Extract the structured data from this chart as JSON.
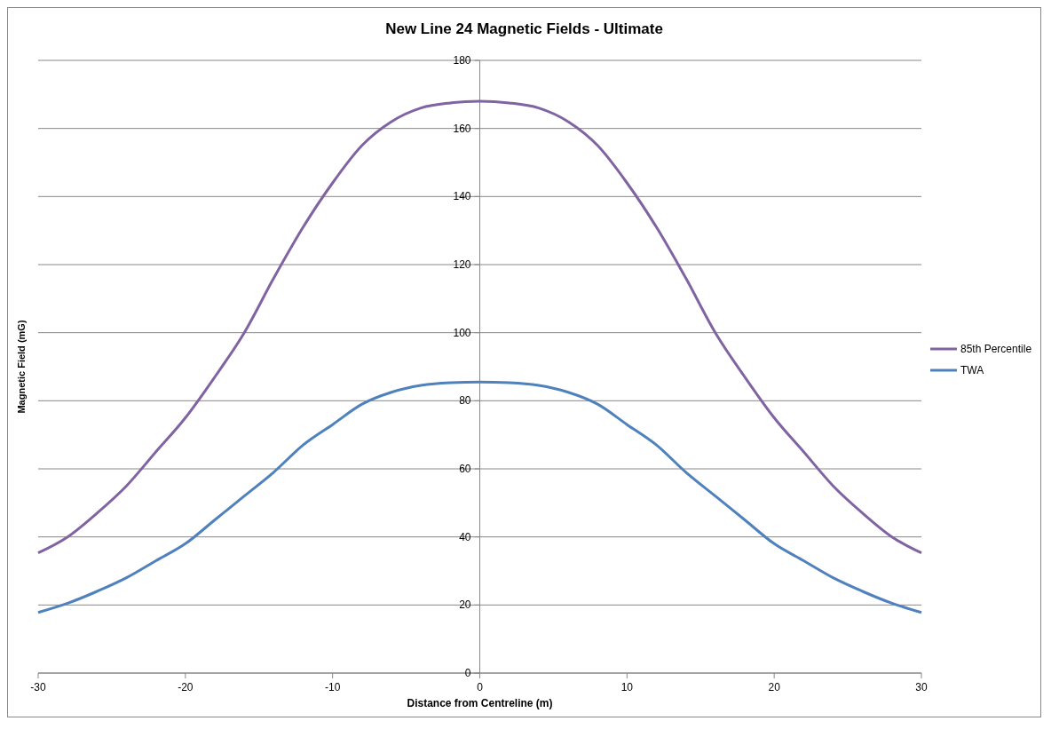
{
  "chart_data": {
    "type": "line",
    "title": "New Line 24 Magnetic Fields - Ultimate",
    "xlabel": "Distance from Centreline (m)",
    "ylabel": "Magnetic Field (mG)",
    "x": [
      -30,
      -28,
      -26,
      -24,
      -22,
      -20,
      -18,
      -16,
      -14,
      -12,
      -10,
      -8,
      -6,
      -4,
      -2,
      0,
      2,
      4,
      6,
      8,
      10,
      12,
      14,
      16,
      18,
      20,
      22,
      24,
      26,
      28,
      30
    ],
    "series": [
      {
        "name": "85th Percentile",
        "color": "#8064a2",
        "values": [
          35.3,
          40,
          47,
          55,
          65,
          75,
          87,
          100,
          116,
          131,
          144,
          155,
          162,
          166,
          167.5,
          168,
          167.5,
          166,
          162,
          155,
          144,
          131,
          116,
          100,
          87,
          75,
          65,
          55,
          47,
          40,
          35.3
        ]
      },
      {
        "name": "TWA",
        "color": "#4f81bd",
        "values": [
          17.8,
          20.5,
          24,
          28,
          33,
          38,
          45,
          52,
          59,
          67,
          73,
          79,
          82.5,
          84.5,
          85.3,
          85.5,
          85.3,
          84.5,
          82.5,
          79,
          73,
          67,
          59,
          52,
          45,
          38,
          33,
          28,
          24,
          20.5,
          17.8
        ]
      }
    ],
    "xlim": [
      -30,
      30
    ],
    "xticks": [
      -30,
      -20,
      -10,
      0,
      10,
      20,
      30
    ],
    "ylim": [
      0,
      180
    ],
    "yticks": [
      0,
      20,
      40,
      60,
      80,
      100,
      120,
      140,
      160,
      180
    ],
    "grid": "y",
    "legend": "right",
    "marker": "none",
    "line_style": "solid"
  }
}
